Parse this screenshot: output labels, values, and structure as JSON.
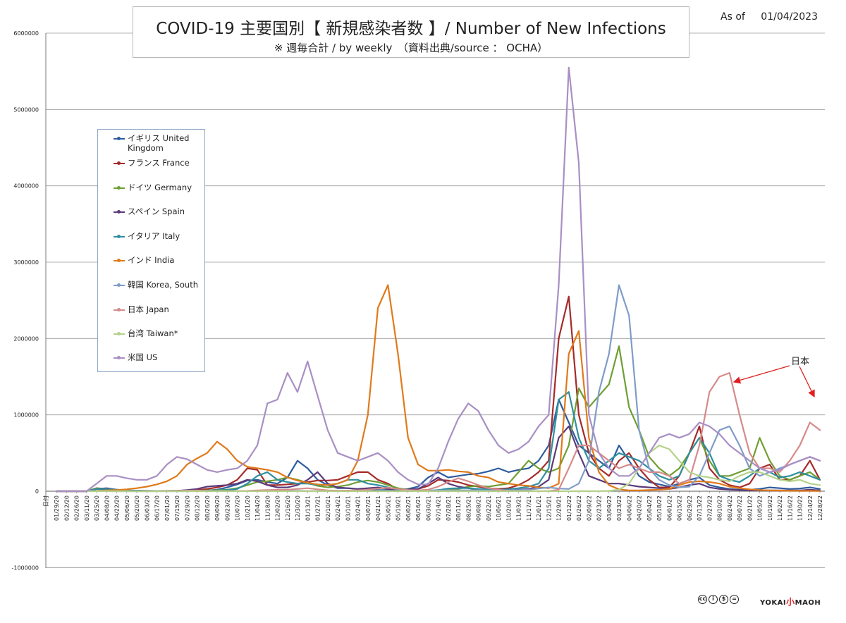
{
  "header": {
    "title": "COVID-19 主要国別【 新規感染者数 】/ Number of New Infections",
    "subtitle": "※ 週毎合計 / by weekly　（資料出典/source ： OCHA）",
    "as_of_label": "As of",
    "as_of_date": "01/04/2023"
  },
  "annotation": {
    "label": "日本"
  },
  "footer": {
    "license_icons": [
      "cc-icon",
      "by-icon",
      "nc-icon",
      "nd-icon"
    ],
    "brand_left": "YOKAI",
    "brand_mid": "小",
    "brand_right": "MAOH"
  },
  "chart_data": {
    "type": "line",
    "title": "COVID-19 主要国別【 新規感染者数 】/ Number of New Infections",
    "ylim": [
      -1000000,
      6000000
    ],
    "y_ticks": [
      "6000000",
      "5000000",
      "4000000",
      "3000000",
      "2000000",
      "1000000",
      "0",
      "-1000000"
    ],
    "grid": true,
    "legend_position": "upper-left",
    "x_first_label": "日付",
    "x_labels": [
      "01/29/20",
      "02/12/20",
      "02/26/20",
      "03/11/20",
      "03/25/20",
      "04/08/20",
      "04/22/20",
      "05/06/20",
      "05/20/20",
      "06/03/20",
      "06/17/20",
      "07/01/20",
      "07/15/20",
      "07/29/20",
      "08/12/20",
      "08/26/20",
      "09/09/20",
      "09/23/20",
      "10/07/20",
      "10/21/20",
      "11/04/20",
      "11/18/20",
      "12/02/20",
      "12/16/20",
      "12/30/20",
      "01/13/21",
      "01/27/21",
      "02/10/21",
      "02/24/21",
      "03/10/21",
      "03/24/21",
      "04/07/21",
      "04/21/21",
      "05/05/21",
      "05/19/21",
      "06/02/21",
      "06/16/21",
      "06/30/21",
      "07/14/21",
      "07/28/21",
      "08/11/21",
      "08/25/21",
      "09/08/21",
      "09/22/21",
      "10/06/21",
      "10/20/21",
      "11/03/21",
      "11/17/21",
      "12/01/21",
      "12/15/21",
      "12/29/21",
      "01/12/22",
      "01/26/22",
      "02/09/22",
      "02/23/22",
      "03/09/22",
      "03/23/22",
      "04/06/22",
      "04/20/22",
      "05/04/22",
      "05/18/22",
      "06/01/22",
      "06/15/22",
      "06/29/22",
      "07/13/22",
      "07/27/22",
      "08/10/22",
      "08/24/22",
      "09/07/22",
      "09/21/22",
      "10/05/22",
      "10/19/22",
      "11/02/22",
      "11/16/22",
      "11/30/22",
      "12/14/22",
      "12/28/22"
    ],
    "series": [
      {
        "name": "イギリス United Kingdom",
        "color": "#2e5c9e",
        "values": [
          0,
          0,
          0,
          0,
          30000,
          20000,
          15000,
          10000,
          8000,
          6000,
          4000,
          4000,
          5000,
          6000,
          8000,
          10000,
          20000,
          50000,
          90000,
          140000,
          150000,
          120000,
          100000,
          180000,
          400000,
          300000,
          150000,
          80000,
          40000,
          40000,
          30000,
          20000,
          15000,
          15000,
          20000,
          30000,
          60000,
          180000,
          250000,
          180000,
          200000,
          220000,
          230000,
          260000,
          300000,
          250000,
          280000,
          300000,
          400000,
          600000,
          1200000,
          900000,
          600000,
          500000,
          400000,
          300000,
          600000,
          400000,
          200000,
          120000,
          90000,
          60000,
          100000,
          150000,
          180000,
          80000,
          50000,
          30000,
          20000,
          20000,
          30000,
          50000,
          40000,
          30000,
          35000,
          50000,
          30000
        ]
      },
      {
        "name": "フランス France",
        "color": "#a52a2a",
        "values": [
          0,
          0,
          0,
          0,
          40000,
          30000,
          8000,
          5000,
          3000,
          3000,
          4000,
          5000,
          5000,
          8000,
          15000,
          30000,
          50000,
          80000,
          150000,
          300000,
          280000,
          80000,
          80000,
          90000,
          100000,
          120000,
          140000,
          140000,
          150000,
          200000,
          250000,
          250000,
          150000,
          100000,
          20000,
          20000,
          30000,
          70000,
          150000,
          140000,
          120000,
          80000,
          60000,
          40000,
          30000,
          40000,
          80000,
          150000,
          250000,
          400000,
          2000000,
          2550000,
          1000000,
          500000,
          300000,
          200000,
          400000,
          500000,
          300000,
          150000,
          50000,
          50000,
          200000,
          500000,
          850000,
          300000,
          150000,
          80000,
          50000,
          100000,
          300000,
          350000,
          150000,
          150000,
          200000,
          400000,
          150000
        ]
      },
      {
        "name": "ドイツ Germany",
        "color": "#6e9e32",
        "values": [
          0,
          0,
          0,
          0,
          40000,
          30000,
          10000,
          5000,
          3000,
          3000,
          3000,
          3000,
          4000,
          6000,
          8000,
          10000,
          15000,
          20000,
          40000,
          80000,
          120000,
          130000,
          150000,
          180000,
          150000,
          110000,
          70000,
          50000,
          60000,
          80000,
          120000,
          140000,
          120000,
          80000,
          40000,
          20000,
          8000,
          6000,
          10000,
          15000,
          30000,
          60000,
          70000,
          60000,
          80000,
          100000,
          250000,
          400000,
          300000,
          250000,
          300000,
          600000,
          1350000,
          1100000,
          1250000,
          1400000,
          1900000,
          1100000,
          800000,
          450000,
          300000,
          200000,
          300000,
          500000,
          700000,
          400000,
          200000,
          200000,
          250000,
          300000,
          700000,
          400000,
          200000,
          150000,
          200000,
          250000,
          150000
        ]
      },
      {
        "name": "スペイン Spain",
        "color": "#5a3a7a",
        "values": [
          0,
          0,
          0,
          0,
          30000,
          40000,
          20000,
          10000,
          5000,
          3000,
          3000,
          4000,
          6000,
          15000,
          30000,
          60000,
          70000,
          80000,
          100000,
          150000,
          130000,
          80000,
          50000,
          50000,
          80000,
          150000,
          250000,
          100000,
          50000,
          40000,
          30000,
          40000,
          50000,
          30000,
          20000,
          20000,
          30000,
          100000,
          180000,
          100000,
          60000,
          40000,
          20000,
          15000,
          10000,
          15000,
          20000,
          30000,
          60000,
          150000,
          700000,
          850000,
          500000,
          200000,
          150000,
          100000,
          100000,
          80000,
          60000,
          50000,
          40000,
          30000,
          50000,
          80000,
          100000,
          50000,
          30000,
          20000,
          15000,
          10000,
          10000,
          10000,
          10000,
          10000,
          10000,
          20000,
          10000
        ]
      },
      {
        "name": "イタリア Italy",
        "color": "#2f8fa0",
        "values": [
          0,
          0,
          0,
          0,
          30000,
          30000,
          20000,
          10000,
          5000,
          2000,
          1500,
          1500,
          1500,
          2000,
          4000,
          8000,
          10000,
          15000,
          30000,
          100000,
          200000,
          250000,
          150000,
          120000,
          100000,
          100000,
          80000,
          80000,
          100000,
          150000,
          150000,
          100000,
          80000,
          50000,
          20000,
          10000,
          6000,
          6000,
          15000,
          35000,
          40000,
          40000,
          30000,
          25000,
          20000,
          25000,
          40000,
          60000,
          100000,
          300000,
          1200000,
          1300000,
          700000,
          400000,
          300000,
          400000,
          500000,
          450000,
          400000,
          300000,
          200000,
          150000,
          200000,
          500000,
          700000,
          500000,
          200000,
          150000,
          120000,
          200000,
          300000,
          250000,
          180000,
          200000,
          250000,
          200000,
          150000
        ]
      },
      {
        "name": "インド India",
        "color": "#e07a1a",
        "values": [
          0,
          0,
          0,
          0,
          5000,
          10000,
          15000,
          25000,
          40000,
          60000,
          90000,
          130000,
          200000,
          350000,
          430000,
          500000,
          650000,
          550000,
          400000,
          320000,
          300000,
          280000,
          250000,
          180000,
          140000,
          110000,
          90000,
          80000,
          100000,
          150000,
          400000,
          1000000,
          2400000,
          2700000,
          1800000,
          700000,
          350000,
          270000,
          270000,
          280000,
          260000,
          250000,
          200000,
          180000,
          120000,
          100000,
          80000,
          70000,
          50000,
          40000,
          100000,
          1800000,
          2100000,
          700000,
          250000,
          80000,
          25000,
          10000,
          10000,
          15000,
          20000,
          30000,
          80000,
          120000,
          130000,
          120000,
          100000,
          60000,
          40000,
          25000,
          15000,
          10000,
          8000,
          6000,
          5000,
          5000,
          3000
        ]
      },
      {
        "name": "韓国 Korea, South",
        "color": "#7f9cc8",
        "values": [
          0,
          0,
          0,
          3000,
          700,
          500,
          300,
          200,
          200,
          300,
          300,
          300,
          400,
          400,
          2000,
          2500,
          1000,
          700,
          700,
          800,
          1500,
          3500,
          6000,
          7000,
          5000,
          3000,
          3000,
          3000,
          3000,
          3000,
          3000,
          4000,
          5000,
          4000,
          4000,
          4000,
          4000,
          8000,
          10000,
          12000,
          12000,
          12000,
          12000,
          12000,
          12000,
          12000,
          15000,
          20000,
          35000,
          50000,
          35000,
          30000,
          100000,
          400000,
          1300000,
          1800000,
          2700000,
          2300000,
          800000,
          300000,
          150000,
          80000,
          50000,
          60000,
          200000,
          500000,
          800000,
          850000,
          600000,
          300000,
          200000,
          250000,
          300000,
          350000,
          400000,
          450000,
          400000
        ]
      },
      {
        "name": "日本 Japan",
        "color": "#d68a8a",
        "values": [
          0,
          0,
          0,
          0,
          2000,
          3000,
          2000,
          500,
          300,
          300,
          500,
          1500,
          4000,
          8000,
          9000,
          5000,
          4000,
          3500,
          4000,
          5000,
          10000,
          15000,
          18000,
          20000,
          30000,
          40000,
          25000,
          10000,
          7000,
          8000,
          12000,
          20000,
          35000,
          45000,
          30000,
          15000,
          10000,
          20000,
          60000,
          120000,
          170000,
          130000,
          80000,
          40000,
          20000,
          2000,
          1000,
          1000,
          1000,
          2000,
          20000,
          300000,
          600000,
          600000,
          500000,
          400000,
          300000,
          350000,
          300000,
          250000,
          250000,
          200000,
          100000,
          150000,
          600000,
          1300000,
          1500000,
          1550000,
          1000000,
          500000,
          300000,
          300000,
          250000,
          400000,
          600000,
          900000,
          800000
        ]
      },
      {
        "name": "台湾 Taiwan*",
        "color": "#b4d28a",
        "values": [
          0,
          0,
          0,
          0,
          0,
          0,
          0,
          0,
          0,
          0,
          0,
          0,
          0,
          0,
          0,
          0,
          0,
          0,
          0,
          0,
          0,
          0,
          0,
          0,
          0,
          0,
          0,
          0,
          0,
          0,
          0,
          0,
          0,
          0,
          2000,
          3000,
          1000,
          500,
          200,
          100,
          100,
          100,
          0,
          0,
          0,
          0,
          0,
          0,
          0,
          0,
          0,
          0,
          1000,
          1000,
          2000,
          5000,
          20000,
          100000,
          300000,
          500000,
          600000,
          550000,
          400000,
          250000,
          200000,
          180000,
          150000,
          130000,
          200000,
          250000,
          250000,
          200000,
          150000,
          130000,
          150000,
          100000,
          80000
        ]
      },
      {
        "name": "米国 US",
        "color": "#a98fc4",
        "values": [
          0,
          0,
          0,
          0,
          100000,
          200000,
          200000,
          170000,
          150000,
          150000,
          200000,
          350000,
          450000,
          420000,
          350000,
          280000,
          250000,
          280000,
          300000,
          400000,
          600000,
          1150000,
          1200000,
          1550000,
          1300000,
          1700000,
          1250000,
          800000,
          500000,
          450000,
          400000,
          450000,
          500000,
          400000,
          250000,
          150000,
          90000,
          90000,
          300000,
          650000,
          950000,
          1150000,
          1050000,
          800000,
          600000,
          500000,
          550000,
          650000,
          850000,
          1000000,
          2700000,
          5550000,
          4300000,
          1000000,
          500000,
          300000,
          200000,
          200000,
          300000,
          500000,
          700000,
          750000,
          700000,
          750000,
          900000,
          850000,
          750000,
          600000,
          500000,
          400000,
          300000,
          250000,
          280000,
          350000,
          400000,
          450000,
          400000
        ]
      }
    ]
  }
}
